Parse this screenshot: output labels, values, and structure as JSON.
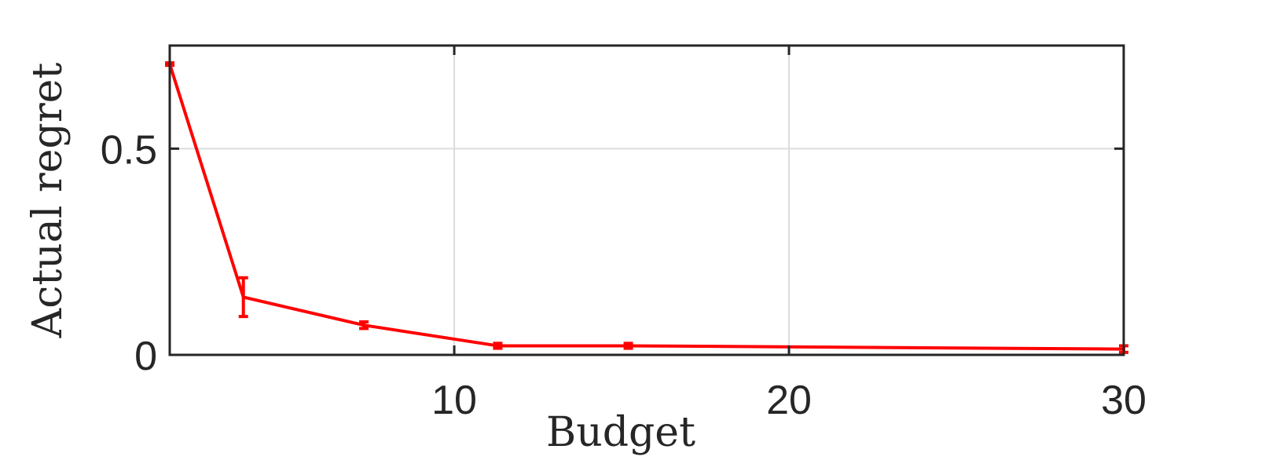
{
  "chart_data": {
    "type": "line",
    "title": "",
    "xlabel": "Budget",
    "ylabel": "Actual regret",
    "xlim": [
      1.5,
      30
    ],
    "ylim": [
      0,
      0.75
    ],
    "x_ticks": [
      10,
      20,
      30
    ],
    "x_tick_labels": [
      "10",
      "20",
      "30"
    ],
    "y_ticks": [
      0,
      0.5
    ],
    "y_tick_labels": [
      "0",
      "0.5"
    ],
    "grid": true,
    "series": [
      {
        "color": "#ff0000",
        "x": [
          1.5,
          3.7,
          7.3,
          11.3,
          15.2,
          30
        ],
        "y": [
          0.705,
          0.14,
          0.072,
          0.022,
          0.022,
          0.014
        ],
        "error": [
          0.003,
          0.047,
          0.008,
          0.006,
          0.006,
          0.008
        ]
      }
    ]
  },
  "colors": {
    "series": "#ff0000",
    "axis": "#262626",
    "grid": "#dcdcdc"
  }
}
